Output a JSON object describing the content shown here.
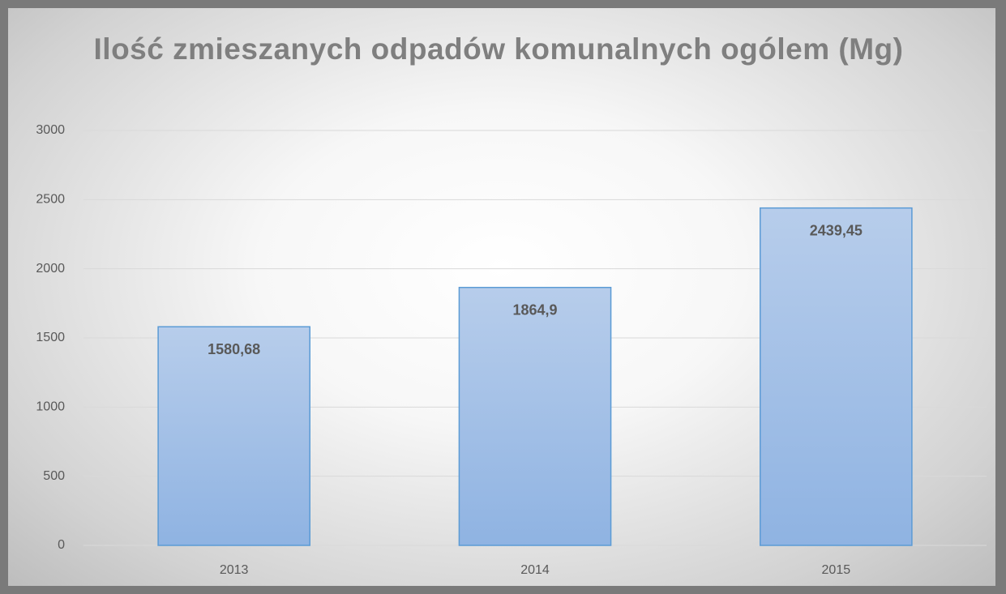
{
  "chart_data": {
    "type": "bar",
    "title": "Ilość zmieszanych odpadów komunalnych ogólem (Mg)",
    "categories": [
      "2013",
      "2014",
      "2015"
    ],
    "values": [
      1580.68,
      1864.9,
      2439.45
    ],
    "value_labels": [
      "1580,68",
      "1864,9",
      "2439,45"
    ],
    "color": "#9dbde6",
    "ylim": [
      0,
      3000
    ],
    "yticks": [
      0,
      500,
      1000,
      1500,
      2000,
      2500,
      3000
    ],
    "grid": true
  }
}
